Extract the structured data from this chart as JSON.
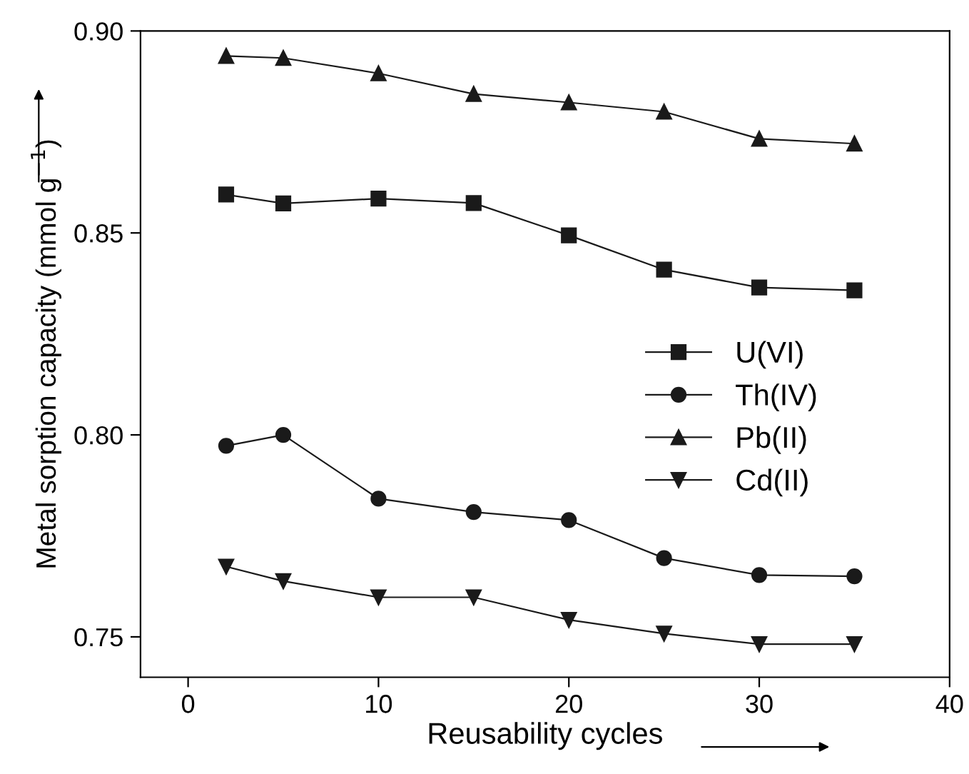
{
  "chart_data": {
    "type": "line",
    "xlabel": "Reusability cycles",
    "ylabel": "Metal sorption capacity (mmol g$^{−1}$)",
    "x": [
      2,
      5,
      10,
      15,
      20,
      25,
      30,
      35
    ],
    "series": [
      {
        "name": "U(VI)",
        "color": "#1a1a1a",
        "marker": "square",
        "values": [
          0.8595,
          0.8573,
          0.8585,
          0.8574,
          0.8494,
          0.8409,
          0.8365,
          0.8358
        ]
      },
      {
        "name": "Th(IV)",
        "color": "#1a1a1a",
        "marker": "circle",
        "values": [
          0.7973,
          0.8,
          0.7842,
          0.7809,
          0.7789,
          0.7695,
          0.7653,
          0.765
        ]
      },
      {
        "name": "Pb(II)",
        "color": "#1a1a1a",
        "marker": "triangle",
        "values": [
          0.8938,
          0.8933,
          0.8895,
          0.8844,
          0.8823,
          0.88,
          0.8733,
          0.8721
        ]
      },
      {
        "name": "Cd(II)",
        "color": "#1a1a1a",
        "marker": "triangle_down",
        "values": [
          0.7674,
          0.7638,
          0.7598,
          0.7598,
          0.7542,
          0.7508,
          0.7482,
          0.7482
        ]
      }
    ],
    "xlim": [
      -2.5,
      40
    ],
    "xticks": [
      0,
      10,
      20,
      30,
      40
    ],
    "ylim": [
      0.74,
      0.9
    ],
    "yticks": [
      {
        "value": 0.75,
        "label": "0.75"
      },
      {
        "value": 0.8,
        "label": "0.80"
      },
      {
        "value": 0.85,
        "label": "0.85"
      },
      {
        "value": 0.9,
        "label": "0.90"
      }
    ],
    "grid": false,
    "legend": "center right",
    "line_style": "solid"
  }
}
